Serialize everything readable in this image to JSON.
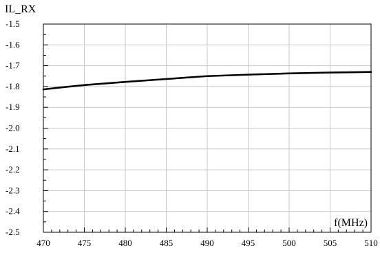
{
  "chart_data": {
    "type": "line",
    "ylabel": "IL_RX",
    "xlabel": "f(MHz)",
    "xlim": [
      470,
      510
    ],
    "ylim": [
      -2.5,
      -1.5
    ],
    "x_ticks": [
      470,
      475,
      480,
      485,
      490,
      495,
      500,
      505,
      510
    ],
    "x_tick_labels": [
      "470",
      "475",
      "480",
      "485",
      "490",
      "495",
      "500",
      "505",
      "510"
    ],
    "y_ticks": [
      -1.5,
      -1.6,
      -1.7,
      -1.8,
      -1.9,
      -2.0,
      -2.1,
      -2.2,
      -2.3,
      -2.4,
      -2.5
    ],
    "y_tick_labels": [
      "-1.5",
      "-1.6",
      "-1.7",
      "-1.8",
      "-1.9",
      "-2.0",
      "-2.1",
      "-2.2",
      "-2.3",
      "-2.4",
      "-2.5"
    ],
    "grid": true,
    "series": [
      {
        "x": [
          470,
          472,
          475,
          480,
          485,
          490,
          495,
          500,
          505,
          510
        ],
        "y": [
          -1.814,
          -1.805,
          -1.793,
          -1.778,
          -1.764,
          -1.75,
          -1.743,
          -1.737,
          -1.733,
          -1.73
        ],
        "color": "#000000"
      }
    ]
  }
}
